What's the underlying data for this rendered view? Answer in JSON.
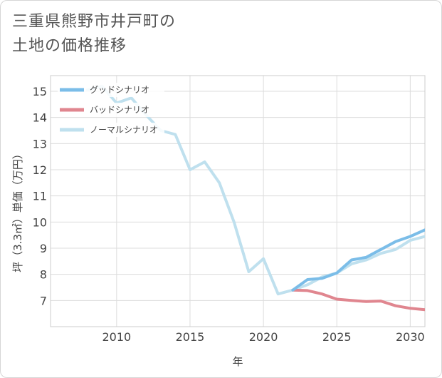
{
  "title_line1": "三重県熊野市井戸町の",
  "title_line2": "土地の価格推移",
  "chart_data": {
    "type": "line",
    "xlabel": "年",
    "ylabel": "坪（3.3㎡）単価（万円）",
    "xlim": [
      2005.5,
      2031
    ],
    "ylim": [
      6.0,
      15.6
    ],
    "xticks": [
      2010,
      2015,
      2020,
      2025,
      2030
    ],
    "yticks": [
      7,
      8,
      9,
      10,
      11,
      12,
      13,
      14,
      15
    ],
    "grid": true,
    "legend_position": "top-left",
    "series": [
      {
        "name": "グッドシナリオ",
        "color": "#7bbde8",
        "x": [
          2022,
          2023,
          2024,
          2025,
          2026,
          2027,
          2028,
          2029,
          2030,
          2031
        ],
        "y": [
          7.4,
          7.8,
          7.85,
          8.05,
          8.55,
          8.65,
          8.95,
          9.25,
          9.45,
          9.7
        ]
      },
      {
        "name": "バッドシナリオ",
        "color": "#e0868f",
        "x": [
          2022,
          2023,
          2024,
          2025,
          2026,
          2027,
          2028,
          2029,
          2030,
          2031
        ],
        "y": [
          7.4,
          7.38,
          7.25,
          7.05,
          7.0,
          6.96,
          6.98,
          6.8,
          6.7,
          6.65
        ]
      },
      {
        "name": "ノーマルシナリオ",
        "color": "#bfe0ee",
        "x": [
          2008,
          2009,
          2010,
          2011,
          2012,
          2013,
          2014,
          2015,
          2016,
          2017,
          2018,
          2019,
          2020,
          2021,
          2022,
          2023,
          2024,
          2025,
          2026,
          2027,
          2028,
          2029,
          2030,
          2031
        ],
        "y": [
          15.05,
          15.2,
          14.55,
          14.75,
          14.1,
          13.5,
          13.35,
          12.0,
          12.3,
          11.5,
          10.0,
          8.1,
          8.6,
          7.25,
          7.4,
          7.6,
          7.9,
          8.05,
          8.4,
          8.55,
          8.8,
          8.95,
          9.3,
          9.45
        ]
      }
    ]
  }
}
